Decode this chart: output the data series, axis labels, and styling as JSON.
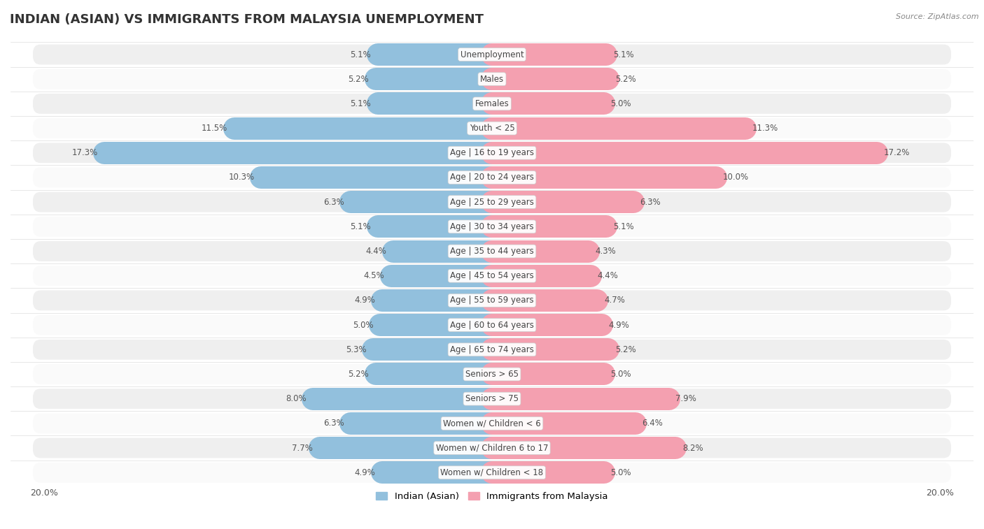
{
  "title": "INDIAN (ASIAN) VS IMMIGRANTS FROM MALAYSIA UNEMPLOYMENT",
  "source": "Source: ZipAtlas.com",
  "categories": [
    "Unemployment",
    "Males",
    "Females",
    "Youth < 25",
    "Age | 16 to 19 years",
    "Age | 20 to 24 years",
    "Age | 25 to 29 years",
    "Age | 30 to 34 years",
    "Age | 35 to 44 years",
    "Age | 45 to 54 years",
    "Age | 55 to 59 years",
    "Age | 60 to 64 years",
    "Age | 65 to 74 years",
    "Seniors > 65",
    "Seniors > 75",
    "Women w/ Children < 6",
    "Women w/ Children 6 to 17",
    "Women w/ Children < 18"
  ],
  "indian_values": [
    5.1,
    5.2,
    5.1,
    11.5,
    17.3,
    10.3,
    6.3,
    5.1,
    4.4,
    4.5,
    4.9,
    5.0,
    5.3,
    5.2,
    8.0,
    6.3,
    7.7,
    4.9
  ],
  "malaysia_values": [
    5.1,
    5.2,
    5.0,
    11.3,
    17.2,
    10.0,
    6.3,
    5.1,
    4.3,
    4.4,
    4.7,
    4.9,
    5.2,
    5.0,
    7.9,
    6.4,
    8.2,
    5.0
  ],
  "indian_color": "#92c0dd",
  "malaysia_color": "#f4a0b0",
  "bar_height": 0.48,
  "background_color": "#ffffff",
  "row_color_even": "#efefef",
  "row_color_odd": "#fafafa",
  "legend_labels": [
    "Indian (Asian)",
    "Immigrants from Malaysia"
  ],
  "title_fontsize": 13,
  "label_fontsize": 8.5,
  "value_fontsize": 8.5,
  "axis_tick_fontsize": 9,
  "xlim": 20.0
}
